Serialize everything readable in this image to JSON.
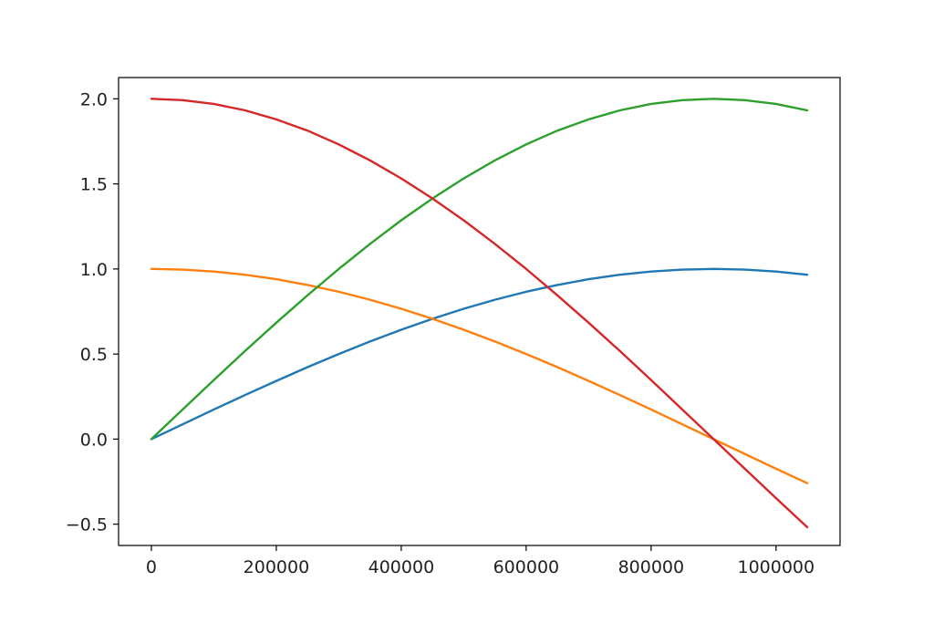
{
  "chart_data": {
    "type": "line",
    "title": "",
    "xlabel": "",
    "ylabel": "",
    "xlim": [
      -52500,
      1102500
    ],
    "ylim": [
      -0.625,
      2.125
    ],
    "grid": false,
    "x_ticks": [
      0,
      200000,
      400000,
      600000,
      800000,
      1000000
    ],
    "x_tick_labels": [
      "0",
      "200000",
      "400000",
      "600000",
      "800000",
      "1000000"
    ],
    "y_ticks": [
      -0.5,
      0.0,
      0.5,
      1.0,
      1.5,
      2.0
    ],
    "y_tick_labels": [
      "−0.5",
      "0.0",
      "0.5",
      "1.0",
      "1.5",
      "2.0"
    ],
    "x": [
      0,
      50000,
      100000,
      150000,
      200000,
      250000,
      300000,
      350000,
      400000,
      450000,
      500000,
      550000,
      600000,
      650000,
      700000,
      750000,
      800000,
      850000,
      900000,
      950000,
      1000000,
      1050000
    ],
    "series": [
      {
        "color": "#1f77b4",
        "values": [
          0.0,
          0.087,
          0.174,
          0.259,
          0.342,
          0.423,
          0.5,
          0.574,
          0.643,
          0.707,
          0.766,
          0.819,
          0.866,
          0.906,
          0.94,
          0.966,
          0.985,
          0.996,
          1.0,
          0.996,
          0.985,
          0.966
        ]
      },
      {
        "color": "#ff7f0e",
        "values": [
          1.0,
          0.996,
          0.985,
          0.966,
          0.94,
          0.906,
          0.866,
          0.819,
          0.766,
          0.707,
          0.643,
          0.574,
          0.5,
          0.423,
          0.342,
          0.259,
          0.174,
          0.087,
          0.0,
          -0.087,
          -0.174,
          -0.259
        ]
      },
      {
        "color": "#2ca02c",
        "values": [
          0.0,
          0.174,
          0.347,
          0.518,
          0.684,
          0.845,
          1.0,
          1.147,
          1.286,
          1.414,
          1.532,
          1.638,
          1.732,
          1.813,
          1.879,
          1.932,
          1.97,
          1.992,
          2.0,
          1.992,
          1.97,
          1.932
        ]
      },
      {
        "color": "#d62728",
        "values": [
          2.0,
          1.992,
          1.97,
          1.932,
          1.879,
          1.813,
          1.732,
          1.638,
          1.532,
          1.414,
          1.286,
          1.147,
          1.0,
          0.845,
          0.684,
          0.518,
          0.347,
          0.174,
          0.0,
          -0.174,
          -0.347,
          -0.518
        ]
      }
    ]
  }
}
